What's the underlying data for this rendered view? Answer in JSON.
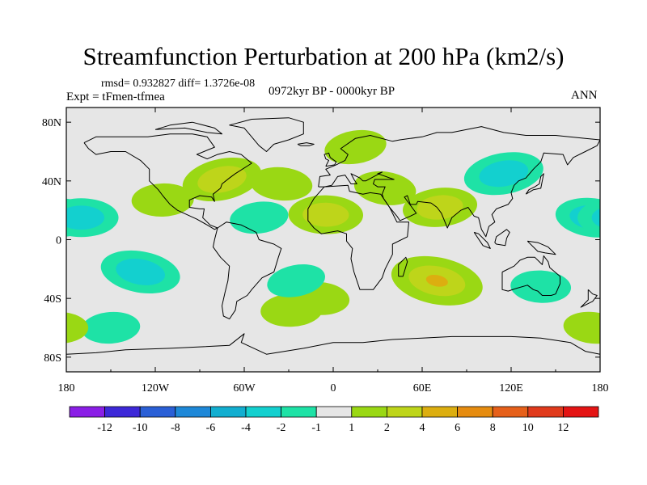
{
  "title": "Streamfunction Perturbation at 200 hPa (km2/s)",
  "stats_line": "rmsd= 0.932827 diff= 1.3726e-08",
  "experiment": "Expt = tFmen-tfmea",
  "period": "0972kyr BP - 0000kyr BP",
  "season": "ANN",
  "chart_data": {
    "type": "heatmap",
    "projection": "cylindrical-equidistant",
    "lon_range": [
      -180,
      180
    ],
    "lat_range": [
      -90,
      90
    ],
    "x_ticks": [
      {
        "lon": -180,
        "label": "180"
      },
      {
        "lon": -120,
        "label": "120W"
      },
      {
        "lon": -60,
        "label": "60W"
      },
      {
        "lon": 0,
        "label": "0"
      },
      {
        "lon": 60,
        "label": "60E"
      },
      {
        "lon": 120,
        "label": "120E"
      },
      {
        "lon": 180,
        "label": "180"
      }
    ],
    "y_ticks": [
      {
        "lat": 80,
        "label": "80N"
      },
      {
        "lat": 40,
        "label": "40N"
      },
      {
        "lat": 0,
        "label": "0"
      },
      {
        "lat": -40,
        "label": "40S"
      },
      {
        "lat": -80,
        "label": "80S"
      }
    ],
    "colorbar": {
      "labels": [
        "-12",
        "-10",
        "-8",
        "-6",
        "-4",
        "-2",
        "-1",
        "1",
        "2",
        "4",
        "6",
        "8",
        "10",
        "12"
      ],
      "colors": [
        "#8a1ee6",
        "#3d28d8",
        "#2a5fd6",
        "#1e88d8",
        "#12aed0",
        "#13d0cf",
        "#1ee2a6",
        "#e6e6e6",
        "#9ad814",
        "#bed51a",
        "#dcae10",
        "#e68c10",
        "#e6601a",
        "#e03a1c",
        "#e41414"
      ]
    },
    "anomalies": [
      {
        "name": "north-atlantic-positive",
        "lon": -75,
        "lat": 41,
        "level": "1 to 4",
        "value": 2.5
      },
      {
        "name": "n-atlantic-east-positive",
        "lon": -35,
        "lat": 38,
        "level": "1 to 2",
        "value": 1.5
      },
      {
        "name": "north-america-pacific-positive",
        "lon": -115,
        "lat": 27,
        "level": "1 to 2",
        "value": 1.5
      },
      {
        "name": "north-europe-positive",
        "lon": 15,
        "lat": 63,
        "level": "1 to 2",
        "value": 1.5
      },
      {
        "name": "mediterranean-positive",
        "lon": 35,
        "lat": 35,
        "level": "1 to 2",
        "value": 1.5
      },
      {
        "name": "africa-west-positive",
        "lon": -5,
        "lat": 17,
        "level": "1 to 4",
        "value": 2.2
      },
      {
        "name": "india-positive",
        "lon": 72,
        "lat": 22,
        "level": "1 to 4",
        "value": 2.2
      },
      {
        "name": "south-indian-ocean-positive",
        "lon": 70,
        "lat": -28,
        "level": "2 to 4",
        "value": 3.2
      },
      {
        "name": "south-atlantic-positive",
        "lon": -10,
        "lat": -40,
        "level": "1 to 2",
        "value": 1.5
      },
      {
        "name": "east-pacific-positive",
        "lon": -28,
        "lat": -48,
        "level": "1 to 2",
        "value": 1.5
      },
      {
        "name": "north-pacific-negative",
        "lon": 115,
        "lat": 45,
        "level": "-4 to -1",
        "value": -2.5
      },
      {
        "name": "west-pacific-negative",
        "lon": 175,
        "lat": 15,
        "level": "-4 to -1",
        "value": -2.2
      },
      {
        "name": "central-pacific-negative",
        "lon": -170,
        "lat": 15,
        "level": "-4 to -1",
        "value": -2.2
      },
      {
        "name": "tropical-atlantic-negative",
        "lon": -50,
        "lat": 15,
        "level": "-2 to -1",
        "value": -1.3
      },
      {
        "name": "south-pacific-negative",
        "lon": -130,
        "lat": -22,
        "level": "-4 to -1",
        "value": -2.5
      },
      {
        "name": "australia-negative",
        "lon": 140,
        "lat": -32,
        "level": "-2 to -1",
        "value": -1.4
      },
      {
        "name": "southern-ocean-negative",
        "lon": -150,
        "lat": -60,
        "level": "-2 to -1",
        "value": -1.3
      },
      {
        "name": "south-america-east-negative",
        "lon": -25,
        "lat": -28,
        "level": "-2 to -1",
        "value": -1.3
      },
      {
        "name": "south-pacific-far-positive",
        "lon": 175,
        "lat": -60,
        "level": "1 to 2",
        "value": 1.3
      }
    ]
  }
}
